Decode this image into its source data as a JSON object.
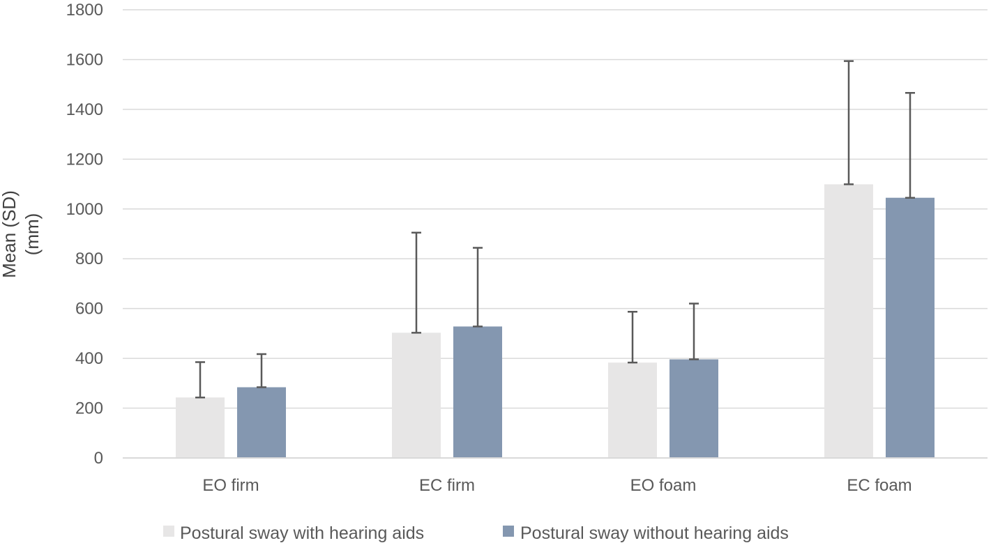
{
  "chart_data": {
    "type": "bar",
    "title": "",
    "xlabel": "",
    "ylabel_lines": [
      "Mean (SD)",
      "(mm)"
    ],
    "ylim": [
      0,
      1800
    ],
    "yticks": [
      0,
      200,
      400,
      600,
      800,
      1000,
      1200,
      1400,
      1600,
      1800
    ],
    "grid": true,
    "legend_position": "bottom",
    "categories": [
      "EO firm",
      "EC firm",
      "EO foam",
      "EC foam"
    ],
    "series": [
      {
        "name": "Postural sway with hearing aids",
        "color": "#e7e6e6",
        "values": [
          243,
          503,
          383,
          1099
        ],
        "error_upper": [
          142,
          402,
          204,
          495
        ]
      },
      {
        "name": "Postural sway without hearing aids",
        "color": "#8497b0",
        "values": [
          284,
          528,
          396,
          1045
        ],
        "error_upper": [
          133,
          316,
          224,
          421
        ]
      }
    ]
  }
}
